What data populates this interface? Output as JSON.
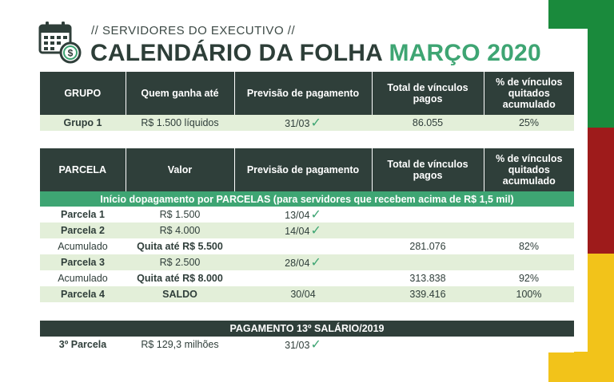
{
  "header": {
    "subtitle": "// SERVIDORES DO EXECUTIVO //",
    "title_main": "CALENDÁRIO DA FOLHA",
    "title_accent": "MARÇO 2020"
  },
  "colors": {
    "dark": "#2f3f3a",
    "accent_green": "#3ea573",
    "light_row": "#e3efd9",
    "flag_green": "#1a8a3c",
    "flag_red": "#9e1b1b",
    "flag_yellow": "#f2c31a"
  },
  "icons": [
    "calendar-money-icon",
    "check-icon"
  ],
  "table1": {
    "headers": [
      "GRUPO",
      "Quem ganha até",
      "Previsão de pagamento",
      "Total de vínculos pagos",
      "% de vínculos quitados acumulado"
    ],
    "rows": [
      {
        "c1": "Grupo 1",
        "c2": "R$ 1.500 líquidos",
        "c3": "31/03",
        "c4": "86.055",
        "c5": "25%"
      }
    ]
  },
  "table2": {
    "headers": [
      "PARCELA",
      "Valor",
      "Previsão de pagamento",
      "Total de vínculos pagos",
      "% de vínculos quitados acumulado"
    ],
    "band": "Início dopagamento por PARCELAS (para servidores que recebem acima de R$ 1,5 mil)",
    "rows": [
      {
        "c1": "Parcela 1",
        "c2": "R$ 1.500",
        "c3": "13/04",
        "c4": "",
        "c5": ""
      },
      {
        "c1": "Parcela 2",
        "c2": "R$ 4.000",
        "c3": "14/04",
        "c4": "",
        "c5": ""
      },
      {
        "c1": "Acumulado",
        "c2": "Quita até R$ 5.500",
        "c3": "",
        "c4": "281.076",
        "c5": "82%"
      },
      {
        "c1": "Parcela 3",
        "c2": "R$ 2.500",
        "c3": "28/04",
        "c4": "",
        "c5": ""
      },
      {
        "c1": "Acumulado",
        "c2": "Quita até R$ 8.000",
        "c3": "",
        "c4": "313.838",
        "c5": "92%"
      },
      {
        "c1": "Parcela 4",
        "c2": "SALDO",
        "c3": "30/04",
        "c4": "339.416",
        "c5": "100%"
      }
    ]
  },
  "table3": {
    "header": "PAGAMENTO 13º SALÁRIO/2019",
    "rows": [
      {
        "c1": "3º Parcela",
        "c2": "R$ 129,3 milhões",
        "c3": "31/03"
      }
    ]
  }
}
